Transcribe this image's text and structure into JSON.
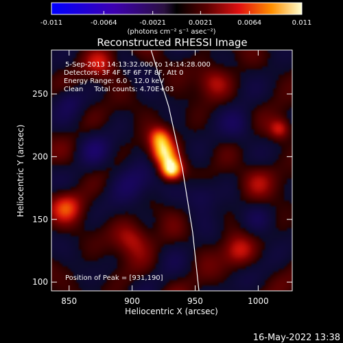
{
  "chart_data": {
    "type": "heatmap",
    "title": "Reconstructed RHESSI Image",
    "xlabel": "Heliocentric X (arcsec)",
    "ylabel": "Heliocentric Y (arcsec)",
    "xlim": [
      836,
      1027
    ],
    "ylim": [
      93,
      285
    ],
    "xticks": [
      "850",
      "900",
      "950",
      "1000"
    ],
    "xtick_values": [
      850,
      900,
      950,
      1000
    ],
    "yticks": [
      "100",
      "150",
      "200",
      "250"
    ],
    "ytick_values": [
      100,
      150,
      200,
      250
    ],
    "colorbar": {
      "ticks": [
        "-0.011",
        "-0.0064",
        "-0.0021",
        "0.0021",
        "0.0064",
        "0.011"
      ],
      "tick_values": [
        -0.011,
        -0.0064,
        -0.0021,
        0.0021,
        0.0064,
        0.011
      ],
      "range": [
        -0.011,
        0.011
      ],
      "unit_text": "(photons cm⁻² s⁻¹ asec⁻²)"
    },
    "annotations": [
      "5-Sep-2013 14:13:32.000 to 14:14:28.000",
      "Detectors: 3F 4F 5F 6F 7F 8F, Att 0",
      "Energy Range: 6.0 - 12.0 keV",
      "Clean     Total counts: 4.70E+03"
    ],
    "peak_label": "Position of Peak = [931,190]",
    "peak": [
      931,
      190
    ],
    "limb_line": [
      [
        915,
        285
      ],
      [
        929,
        240
      ],
      [
        940,
        190
      ],
      [
        948,
        140
      ],
      [
        953,
        93
      ]
    ],
    "sources": [
      {
        "x": 931,
        "y": 190,
        "amp": 1.0,
        "sigma": 6
      },
      {
        "x": 925,
        "y": 203,
        "amp": 0.75,
        "sigma": 7
      },
      {
        "x": 922,
        "y": 215,
        "amp": 0.55,
        "sigma": 6
      },
      {
        "x": 1017,
        "y": 222,
        "amp": 0.45,
        "sigma": 6
      },
      {
        "x": 848,
        "y": 160,
        "amp": 0.45,
        "sigma": 9
      },
      {
        "x": 900,
        "y": 135,
        "amp": 0.4,
        "sigma": 10
      },
      {
        "x": 875,
        "y": 275,
        "amp": 0.35,
        "sigma": 9
      },
      {
        "x": 985,
        "y": 125,
        "amp": 0.35,
        "sigma": 9
      },
      {
        "x": 965,
        "y": 260,
        "amp": 0.3,
        "sigma": 9
      },
      {
        "x": 1000,
        "y": 180,
        "amp": 0.3,
        "sigma": 10
      },
      {
        "x": 900,
        "y": 178,
        "amp": -0.35,
        "sigma": 12
      },
      {
        "x": 870,
        "y": 205,
        "amp": -0.3,
        "sigma": 9
      },
      {
        "x": 955,
        "y": 170,
        "amp": -0.3,
        "sigma": 9
      },
      {
        "x": 985,
        "y": 225,
        "amp": -0.28,
        "sigma": 10
      },
      {
        "x": 1000,
        "y": 150,
        "amp": -0.28,
        "sigma": 9
      },
      {
        "x": 850,
        "y": 245,
        "amp": -0.25,
        "sigma": 8
      }
    ]
  },
  "footer": {
    "timestamp": "16-May-2022 13:38"
  }
}
